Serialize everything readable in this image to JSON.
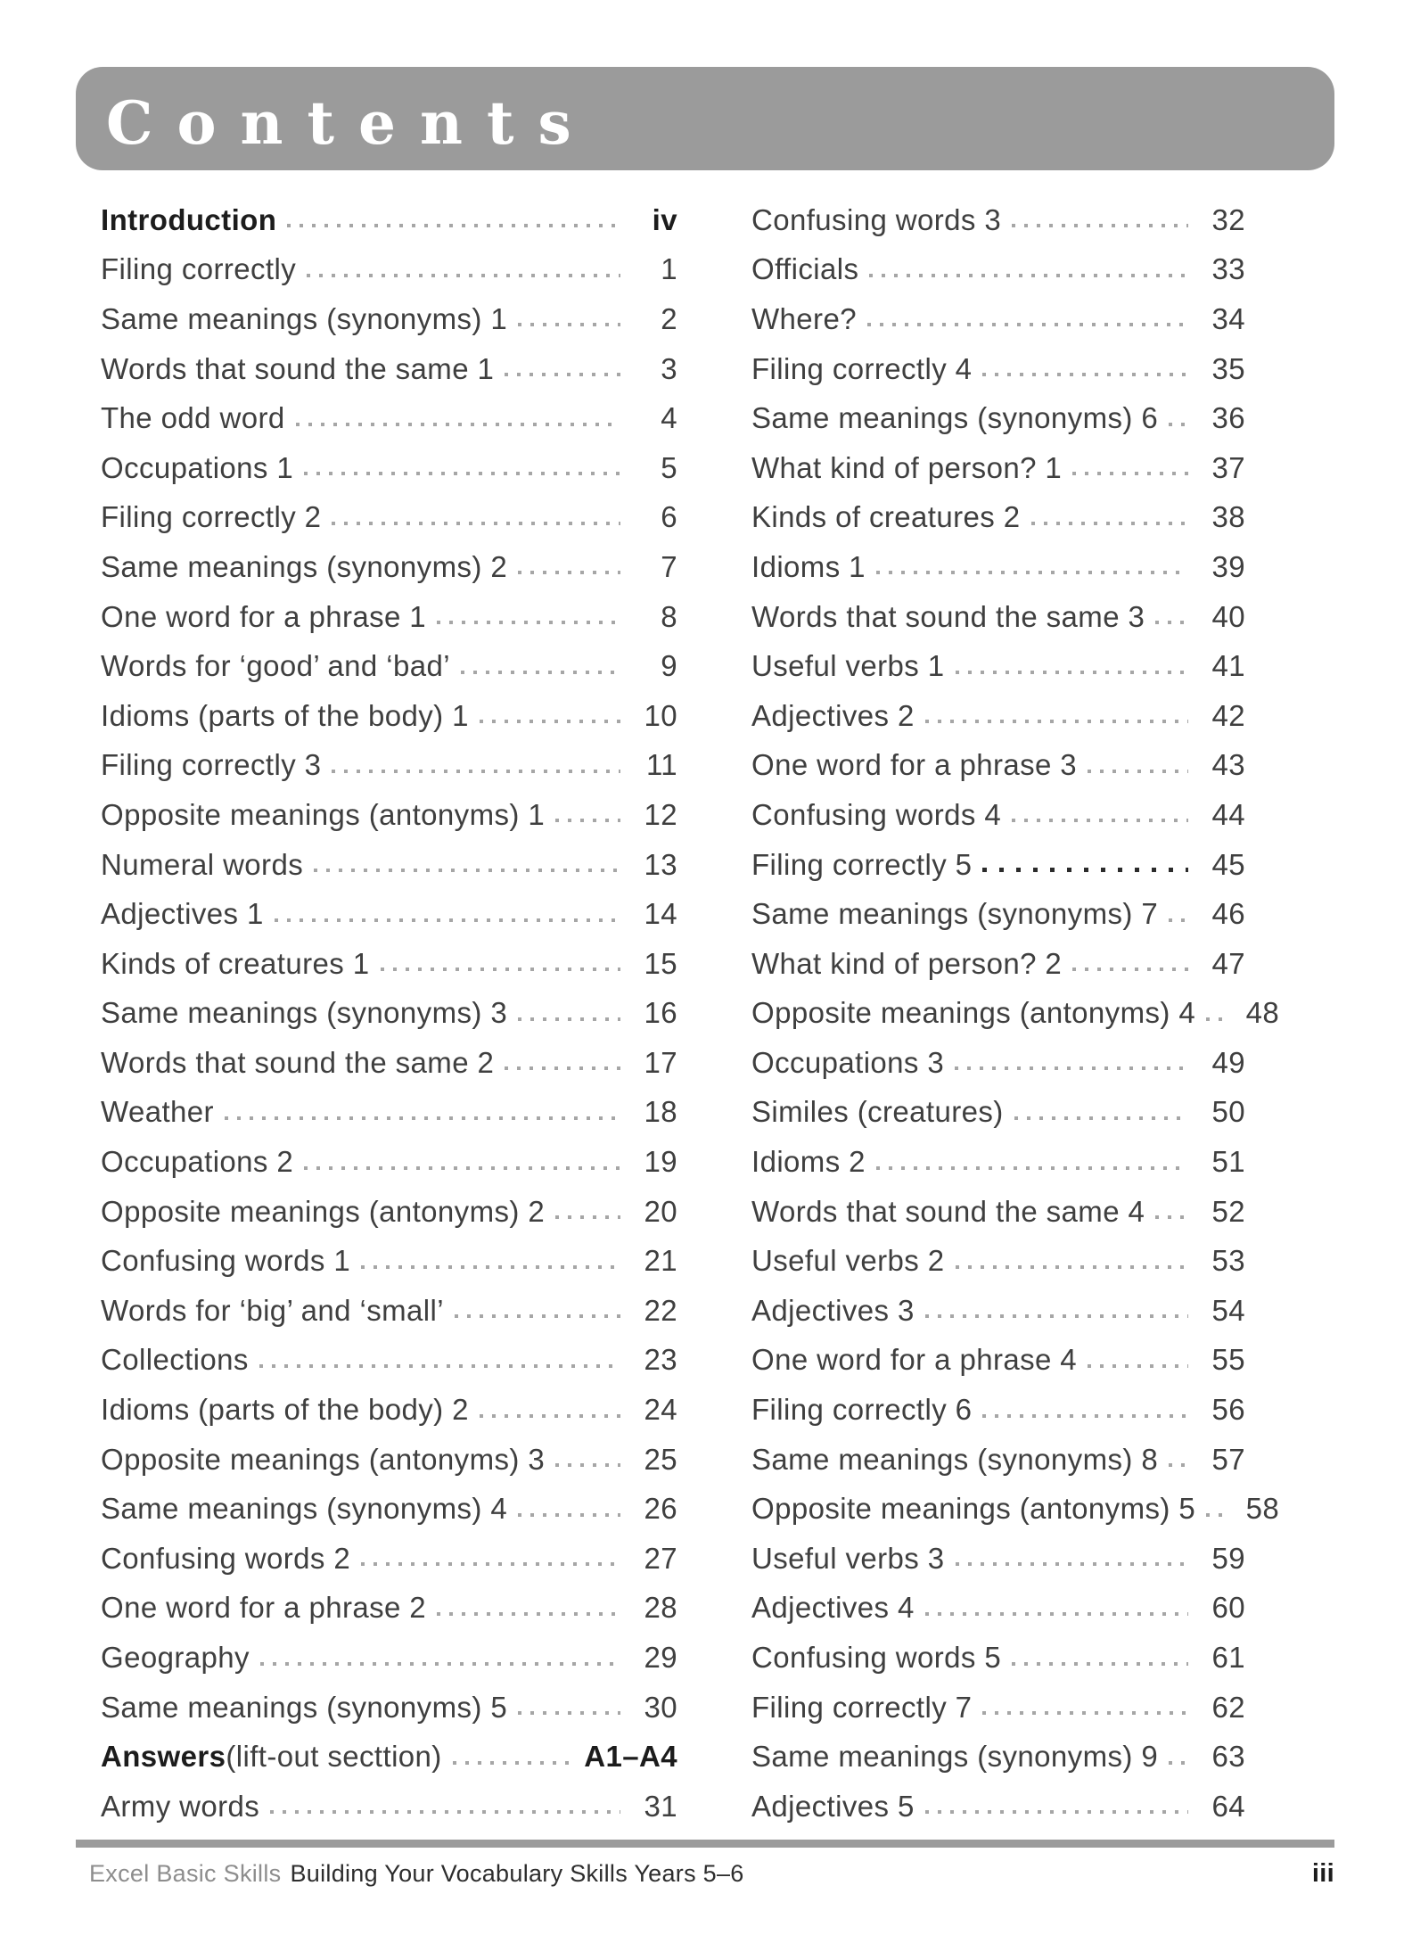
{
  "header": {
    "title": "Contents"
  },
  "columns": {
    "left": [
      {
        "label": "Introduction",
        "page": "iv",
        "bold": true
      },
      {
        "label": "Filing correctly",
        "page": "1"
      },
      {
        "label": "Same meanings (synonyms) 1",
        "page": "2"
      },
      {
        "label": "Words that sound the same 1",
        "page": "3"
      },
      {
        "label": "The odd word",
        "page": "4"
      },
      {
        "label": "Occupations 1",
        "page": "5"
      },
      {
        "label": "Filing correctly 2",
        "page": "6"
      },
      {
        "label": "Same meanings (synonyms) 2",
        "page": "7"
      },
      {
        "label": "One word for a phrase 1",
        "page": "8"
      },
      {
        "label": "Words for ‘good’ and ‘bad’",
        "page": "9"
      },
      {
        "label": "Idioms (parts of the body) 1",
        "page": "10"
      },
      {
        "label": "Filing correctly 3",
        "page": "11"
      },
      {
        "label": "Opposite meanings (antonyms) 1",
        "page": "12"
      },
      {
        "label": "Numeral words",
        "page": "13"
      },
      {
        "label": "Adjectives 1",
        "page": "14"
      },
      {
        "label": "Kinds of creatures 1",
        "page": "15"
      },
      {
        "label": "Same meanings (synonyms) 3",
        "page": "16"
      },
      {
        "label": "Words that sound the same 2",
        "page": "17"
      },
      {
        "label": "Weather",
        "page": "18"
      },
      {
        "label": "Occupations 2",
        "page": "19"
      },
      {
        "label": "Opposite meanings (antonyms) 2",
        "page": "20"
      },
      {
        "label": "Confusing words 1",
        "page": "21"
      },
      {
        "label": "Words for ‘big’ and ‘small’",
        "page": "22"
      },
      {
        "label": "Collections",
        "page": "23"
      },
      {
        "label": "Idioms (parts of the body) 2",
        "page": "24"
      },
      {
        "label": "Opposite meanings (antonyms) 3",
        "page": "25"
      },
      {
        "label": "Same meanings (synonyms) 4",
        "page": "26"
      },
      {
        "label": "Confusing words 2",
        "page": "27"
      },
      {
        "label": "One word for a phrase 2",
        "page": "28"
      },
      {
        "label": "Geography",
        "page": "29"
      },
      {
        "label": "Same meanings (synonyms) 5",
        "page": "30"
      },
      {
        "label": "Answers",
        "label_suffix": " (lift-out secttion)",
        "page": "A1–A4",
        "bold": true
      },
      {
        "label": "Army words",
        "page": "31"
      }
    ],
    "right": [
      {
        "label": "Confusing words 3",
        "page": "32"
      },
      {
        "label": "Officials",
        "page": "33"
      },
      {
        "label": "Where?",
        "page": "34"
      },
      {
        "label": "Filing correctly 4",
        "page": "35"
      },
      {
        "label": "Same meanings (synonyms) 6",
        "page": "36"
      },
      {
        "label": "What kind of person? 1",
        "page": "37"
      },
      {
        "label": "Kinds of creatures 2",
        "page": "38"
      },
      {
        "label": "Idioms 1",
        "page": "39"
      },
      {
        "label": "Words that sound the same 3",
        "page": "40"
      },
      {
        "label": "Useful verbs 1",
        "page": "41"
      },
      {
        "label": "Adjectives 2",
        "page": "42"
      },
      {
        "label": "One word for a phrase 3",
        "page": "43"
      },
      {
        "label": "Confusing words 4",
        "page": "44"
      },
      {
        "label": "Filing correctly 5",
        "page": "45",
        "leader": "dark"
      },
      {
        "label": "Same meanings (synonyms) 7",
        "page": "46"
      },
      {
        "label": "What kind of person? 2",
        "page": "47"
      },
      {
        "label": "Opposite meanings (antonyms) 4",
        "page": "48"
      },
      {
        "label": "Occupations 3",
        "page": "49"
      },
      {
        "label": "Similes (creatures)",
        "page": "50"
      },
      {
        "label": "Idioms 2",
        "page": "51"
      },
      {
        "label": "Words that sound the same 4",
        "page": "52"
      },
      {
        "label": "Useful verbs 2",
        "page": "53"
      },
      {
        "label": "Adjectives 3",
        "page": "54"
      },
      {
        "label": "One word for a phrase 4",
        "page": "55"
      },
      {
        "label": "Filing correctly 6",
        "page": "56"
      },
      {
        "label": "Same meanings (synonyms) 8",
        "page": "57"
      },
      {
        "label": "Opposite meanings (antonyms) 5",
        "page": "58"
      },
      {
        "label": "Useful verbs 3",
        "page": "59"
      },
      {
        "label": "Adjectives 4",
        "page": "60"
      },
      {
        "label": "Confusing words 5",
        "page": "61"
      },
      {
        "label": "Filing correctly 7",
        "page": "62"
      },
      {
        "label": "Same meanings (synonyms) 9",
        "page": "63"
      },
      {
        "label": "Adjectives 5",
        "page": "64"
      }
    ]
  },
  "footer": {
    "series": "Excel Basic Skills",
    "book_title": "Building Your Vocabulary Skills Years 5–6",
    "page_number": "iii"
  },
  "colors": {
    "header_bar": "#9b9b9b",
    "title_text": "#ffffff",
    "entry_text": "#3f3f3f",
    "bold_text": "#1c1c1c",
    "leader_dot": "#a6a6a6",
    "leader_dot_dark": "#2b2b2b",
    "footer_series": "#8d8d8d",
    "footer_title": "#2d2d2d"
  }
}
